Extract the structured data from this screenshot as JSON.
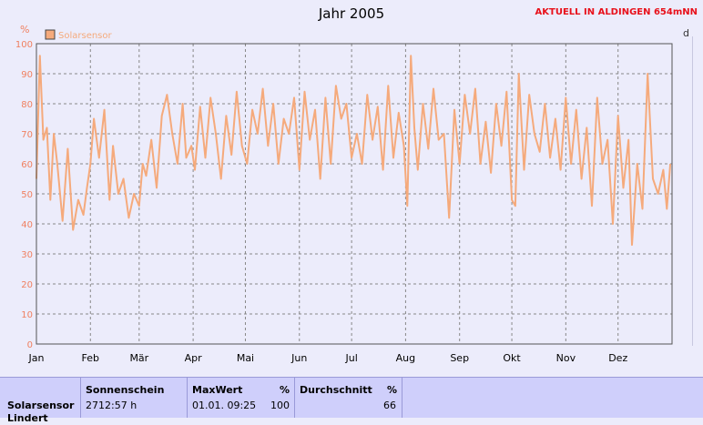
{
  "title": "Jahr 2005",
  "status_text": "AKTUELL IN ALDINGEN 654mNN",
  "edge_text": "d",
  "colors": {
    "series": "#f5aa7c",
    "grid": "#888888",
    "axis": "#555555"
  },
  "chart_data": {
    "type": "line",
    "title": "Jahr 2005",
    "ylabel": "%",
    "ylim": [
      0,
      100
    ],
    "yticks": [
      0,
      10,
      20,
      30,
      40,
      50,
      60,
      70,
      80,
      90,
      100
    ],
    "xlim": [
      0,
      365
    ],
    "xticks": [
      {
        "label": "Jan",
        "day": 0
      },
      {
        "label": "Feb",
        "day": 31
      },
      {
        "label": "Mär",
        "day": 59
      },
      {
        "label": "Apr",
        "day": 90
      },
      {
        "label": "Mai",
        "day": 120
      },
      {
        "label": "Jun",
        "day": 151
      },
      {
        "label": "Jul",
        "day": 181
      },
      {
        "label": "Aug",
        "day": 212
      },
      {
        "label": "Sep",
        "day": 243
      },
      {
        "label": "Okt",
        "day": 273
      },
      {
        "label": "Nov",
        "day": 304
      },
      {
        "label": "Dez",
        "day": 334
      }
    ],
    "grid": true,
    "legend_position": "top-left",
    "series": [
      {
        "name": "Solarsensor",
        "x": [
          0,
          2,
          4,
          6,
          8,
          10,
          12,
          15,
          18,
          21,
          24,
          27,
          29,
          31,
          33,
          36,
          39,
          42,
          44,
          47,
          50,
          53,
          56,
          59,
          61,
          63,
          66,
          69,
          72,
          75,
          78,
          81,
          84,
          86,
          89,
          91,
          94,
          97,
          100,
          103,
          106,
          109,
          112,
          115,
          118,
          121,
          124,
          127,
          130,
          133,
          136,
          139,
          142,
          145,
          148,
          151,
          154,
          157,
          160,
          163,
          166,
          169,
          172,
          175,
          178,
          181,
          184,
          187,
          190,
          193,
          196,
          199,
          202,
          205,
          208,
          211,
          213,
          215,
          217,
          219,
          222,
          225,
          228,
          231,
          234,
          237,
          240,
          243,
          246,
          249,
          252,
          255,
          258,
          261,
          264,
          267,
          270,
          273,
          275,
          277,
          280,
          283,
          286,
          289,
          292,
          295,
          298,
          301,
          304,
          307,
          310,
          313,
          316,
          319,
          322,
          325,
          328,
          331,
          334,
          337,
          340,
          342,
          345,
          348,
          351,
          354,
          357,
          360,
          362,
          364
        ],
        "y": [
          55,
          96,
          68,
          72,
          48,
          70,
          60,
          41,
          65,
          38,
          48,
          43,
          52,
          60,
          75,
          62,
          78,
          48,
          66,
          50,
          55,
          42,
          50,
          46,
          60,
          56,
          68,
          52,
          76,
          83,
          70,
          60,
          80,
          62,
          66,
          58,
          79,
          62,
          82,
          70,
          55,
          76,
          63,
          84,
          66,
          60,
          78,
          70,
          85,
          66,
          80,
          60,
          75,
          70,
          82,
          58,
          84,
          68,
          78,
          55,
          82,
          60,
          86,
          75,
          80,
          62,
          70,
          60,
          83,
          68,
          79,
          58,
          86,
          62,
          77,
          66,
          46,
          96,
          72,
          58,
          80,
          65,
          85,
          68,
          70,
          42,
          78,
          60,
          83,
          70,
          85,
          60,
          74,
          57,
          80,
          66,
          84,
          48,
          46,
          90,
          58,
          83,
          70,
          64,
          80,
          62,
          75,
          58,
          82,
          60,
          78,
          55,
          72,
          46,
          82,
          60,
          68,
          40,
          76,
          52,
          68,
          33,
          60,
          45,
          90,
          55,
          50,
          58,
          45,
          60
        ]
      }
    ]
  },
  "stats": {
    "sensor": "Solarsensor",
    "sensor_sub": "Lindert",
    "col1_header": "Sonnenschein",
    "col1_value": "2712:57 h",
    "col2_header": "MaxWert",
    "col2_unit": "%",
    "col2_date": "01.01.  09:25",
    "col2_value": "100",
    "col3_header": "Durchschnitt",
    "col3_unit": "%",
    "col3_value": "66"
  }
}
